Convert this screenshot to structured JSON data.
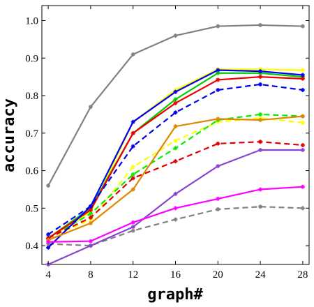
{
  "chart_data": {
    "type": "line",
    "xlabel": "graph#",
    "ylabel": "accuracy",
    "x": [
      4,
      8,
      12,
      16,
      20,
      24,
      28
    ],
    "xlim": [
      3.4,
      28.6
    ],
    "ylim": [
      0.35,
      1.04
    ],
    "xticks": [
      "4",
      "8",
      "12",
      "16",
      "20",
      "24",
      "28"
    ],
    "yticks": [
      "0.4",
      "0.5",
      "0.6",
      "0.7",
      "0.8",
      "0.9",
      "1.0"
    ],
    "grid": false,
    "series": [
      {
        "color": "#808080",
        "dash": "solid",
        "values": [
          0.56,
          0.77,
          0.91,
          0.96,
          0.985,
          0.988,
          0.985
        ]
      },
      {
        "color": "#808080",
        "dash": "dashed",
        "values": [
          0.405,
          0.4,
          0.44,
          0.47,
          0.497,
          0.504,
          0.5
        ]
      },
      {
        "color": "#ffff00",
        "dash": "solid",
        "values": [
          0.42,
          0.49,
          0.73,
          0.815,
          0.87,
          0.87,
          0.868
        ]
      },
      {
        "color": "#ffff00",
        "dash": "dashed",
        "values": [
          0.42,
          0.47,
          0.61,
          0.68,
          0.73,
          0.74,
          0.728
        ]
      },
      {
        "color": "#00cc00",
        "dash": "solid",
        "values": [
          0.42,
          0.5,
          0.7,
          0.79,
          0.86,
          0.86,
          0.85
        ]
      },
      {
        "color": "#00ee00",
        "dash": "dashed",
        "values": [
          0.42,
          0.485,
          0.59,
          0.66,
          0.735,
          0.75,
          0.745
        ]
      },
      {
        "color": "#ee0000",
        "dash": "solid",
        "values": [
          0.42,
          0.495,
          0.7,
          0.78,
          0.842,
          0.85,
          0.845
        ]
      },
      {
        "color": "#dd0000",
        "dash": "dashed",
        "values": [
          0.42,
          0.475,
          0.58,
          0.625,
          0.672,
          0.677,
          0.668
        ]
      },
      {
        "color": "#0000ee",
        "dash": "solid",
        "values": [
          0.395,
          0.505,
          0.73,
          0.81,
          0.868,
          0.865,
          0.855
        ]
      },
      {
        "color": "#0000ee",
        "dash": "dashed",
        "values": [
          0.43,
          0.505,
          0.665,
          0.755,
          0.815,
          0.83,
          0.815
        ]
      },
      {
        "color": "#dd8800",
        "dash": "solid",
        "values": [
          0.415,
          0.46,
          0.55,
          0.718,
          0.738,
          0.735,
          0.745
        ]
      },
      {
        "color": "#8844cc",
        "dash": "solid",
        "values": [
          0.35,
          0.4,
          0.45,
          0.538,
          0.612,
          0.655,
          0.655
        ]
      },
      {
        "color": "#ff00ff",
        "dash": "solid",
        "values": [
          0.41,
          0.412,
          0.462,
          0.5,
          0.525,
          0.55,
          0.557
        ]
      }
    ]
  }
}
